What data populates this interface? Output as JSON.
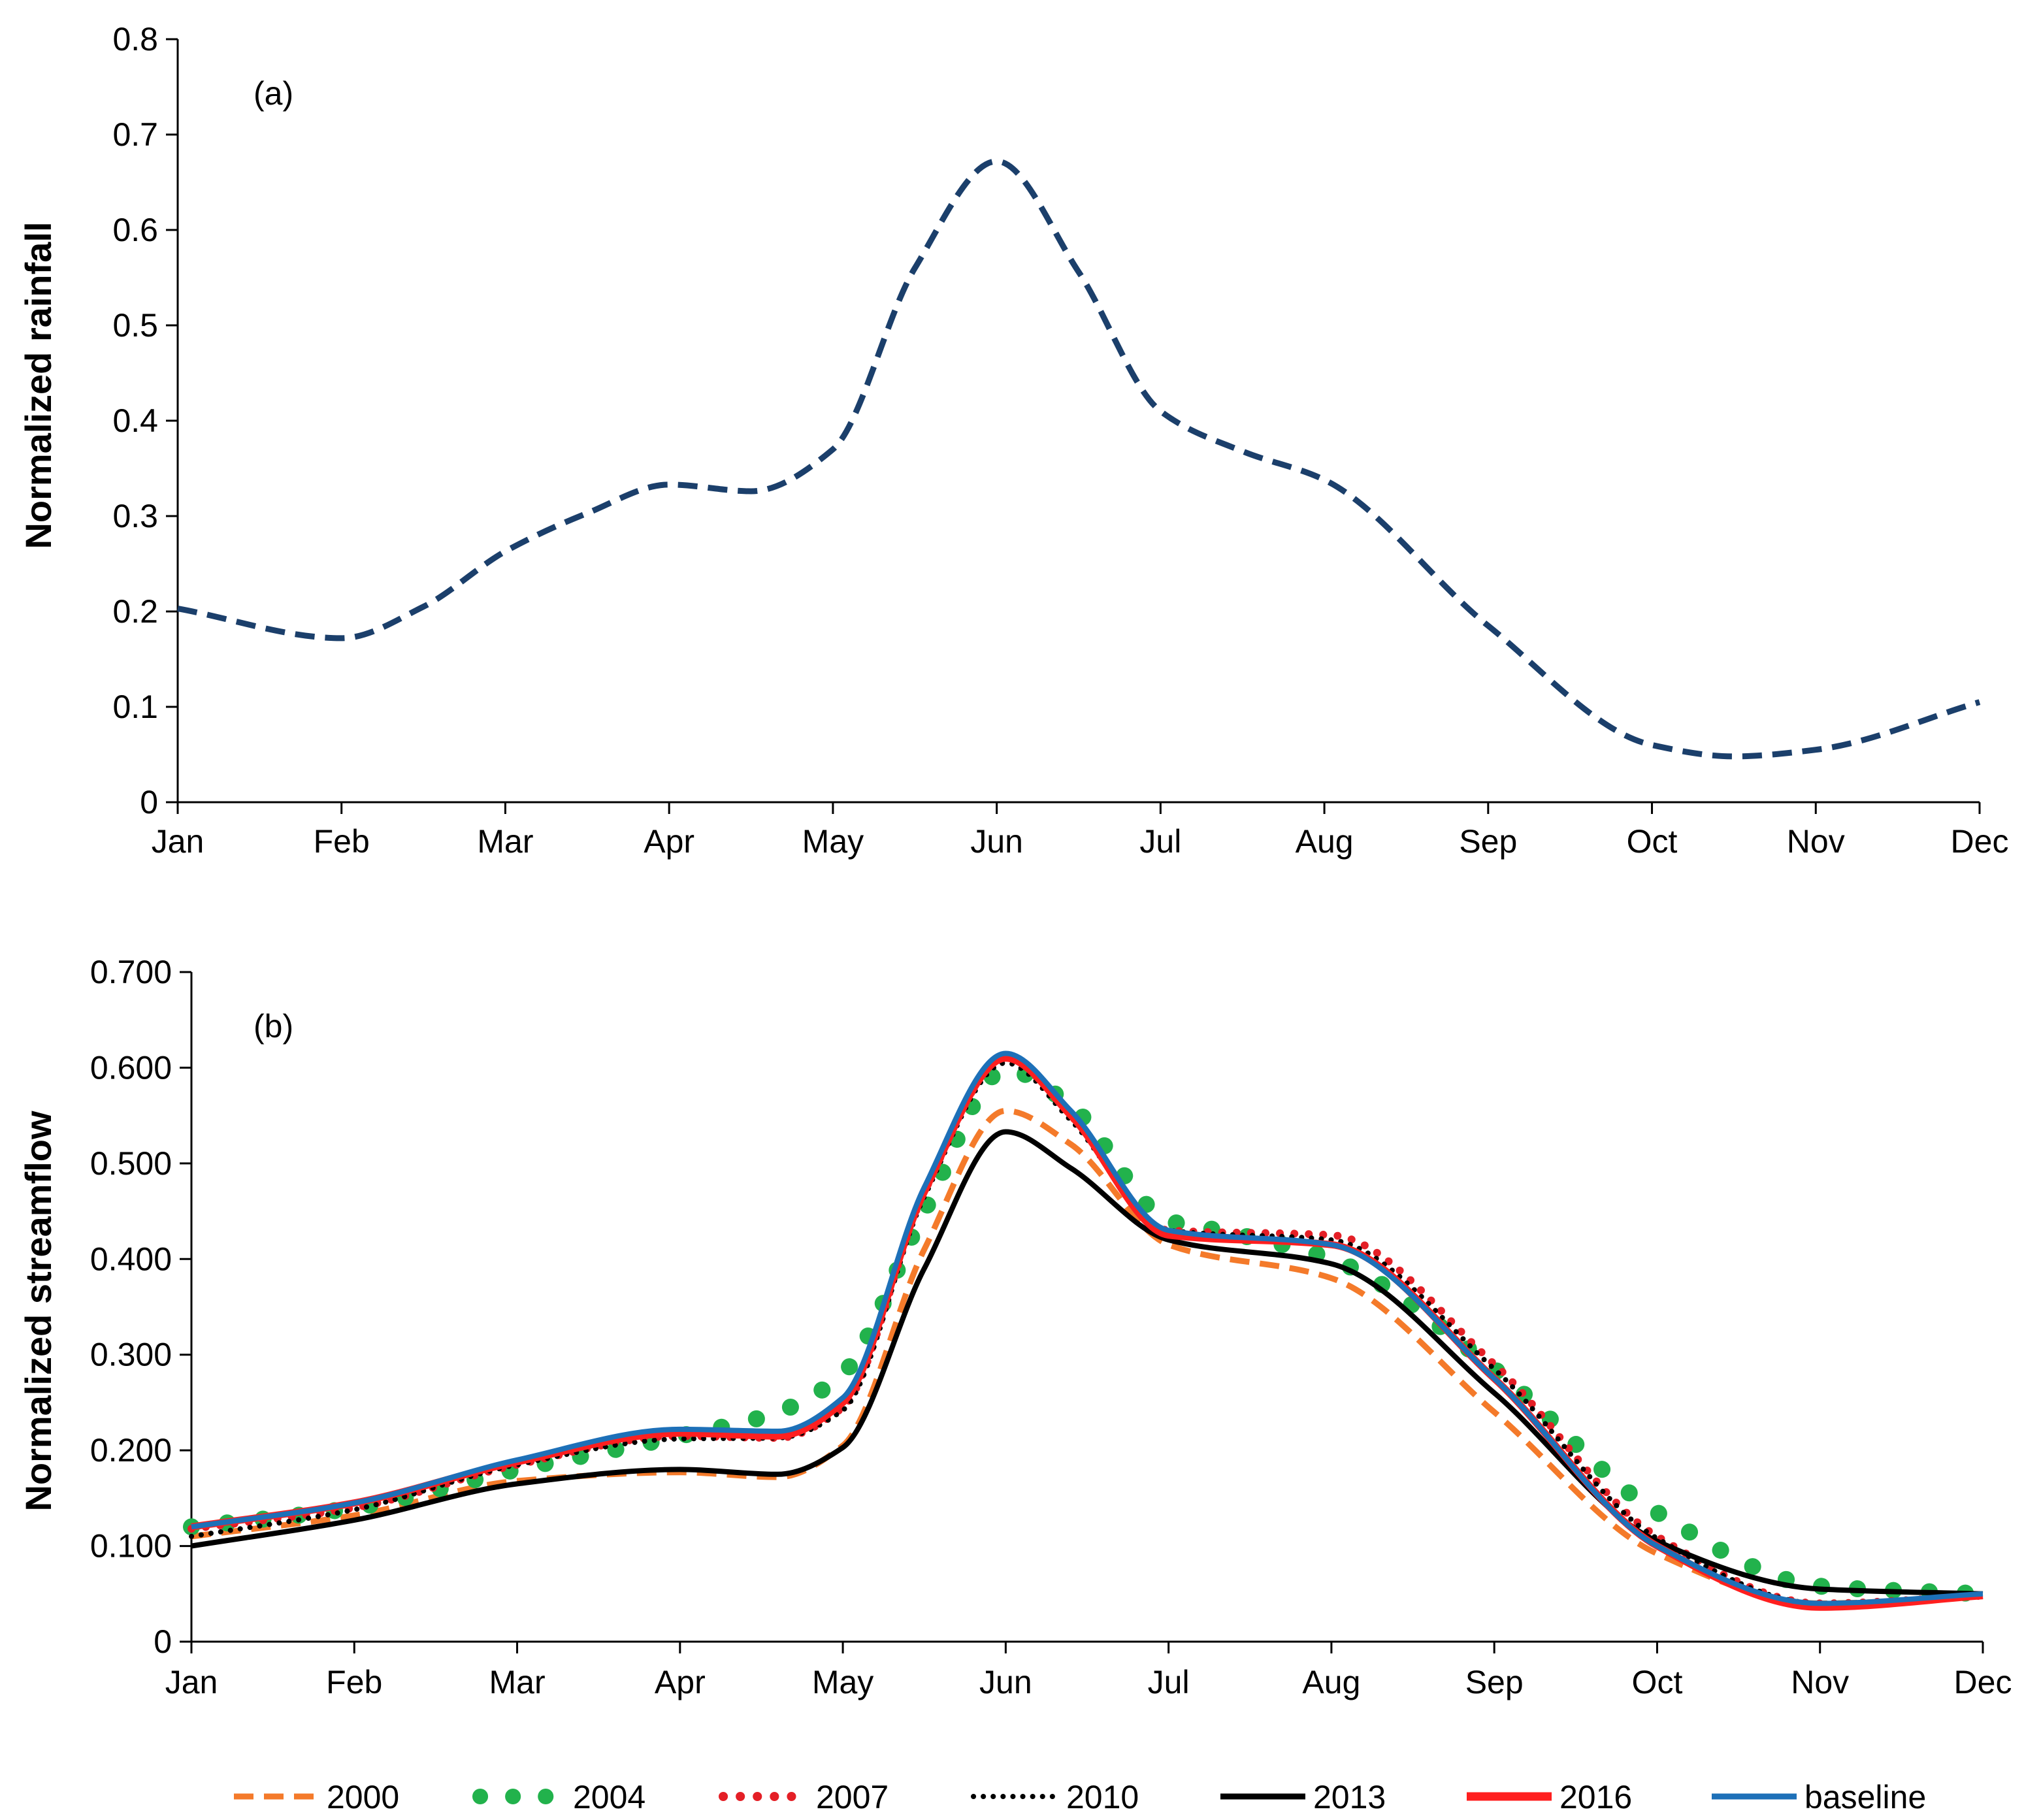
{
  "chart_data": [
    {
      "panel": "(a)",
      "type": "line",
      "title": "",
      "xlabel": "",
      "ylabel": "Normalized rainfall",
      "categories": [
        "Jan",
        "Feb",
        "Mar",
        "Apr",
        "May",
        "Jun",
        "Jul",
        "Aug",
        "Sep",
        "Oct",
        "Nov",
        "Dec"
      ],
      "ylim": [
        0,
        0.8
      ],
      "yticks": [
        "0",
        "0.1",
        "0.2",
        "0.3",
        "0.4",
        "0.5",
        "0.6",
        "0.7",
        "0.8"
      ],
      "series": [
        {
          "name": "rainfall",
          "color": "#1b3f6b",
          "style": "dashed",
          "x": [
            0,
            1,
            1.5,
            2,
            2.5,
            3,
            3.5,
            4,
            4.5,
            5,
            5.5,
            6,
            6.5,
            7,
            8,
            9,
            9.5,
            10,
            11
          ],
          "values": [
            0.203,
            0.172,
            0.205,
            0.263,
            0.303,
            0.333,
            0.326,
            0.37,
            0.56,
            0.672,
            0.556,
            0.41,
            0.368,
            0.338,
            0.185,
            0.06,
            0.048,
            0.055,
            0.105
          ]
        }
      ]
    },
    {
      "panel": "(b)",
      "type": "line",
      "title": "",
      "xlabel": "",
      "ylabel": "Normalized streamflow",
      "categories": [
        "Jan",
        "Feb",
        "Mar",
        "Apr",
        "May",
        "Jun",
        "Jul",
        "Aug",
        "Sep",
        "Oct",
        "Nov",
        "Dec"
      ],
      "ylim": [
        0,
        0.7
      ],
      "yticks": [
        "0",
        "0.100",
        "0.200",
        "0.300",
        "0.400",
        "0.500",
        "0.600",
        "0.700"
      ],
      "series": [
        {
          "name": "2000",
          "color": "#f47a2a",
          "style": "dashed",
          "x": [
            0,
            1,
            2,
            3,
            3.6,
            4,
            4.5,
            5,
            5.4,
            6,
            7,
            8,
            9,
            10,
            11
          ],
          "values": [
            0.11,
            0.132,
            0.168,
            0.177,
            0.172,
            0.205,
            0.41,
            0.555,
            0.52,
            0.415,
            0.38,
            0.24,
            0.092,
            0.04,
            0.048
          ]
        },
        {
          "name": "2004",
          "color": "#22b24c",
          "style": "dots",
          "x": [
            0,
            1,
            2,
            3,
            3.6,
            4,
            4.5,
            5,
            5.4,
            6,
            6.3,
            7,
            8,
            9,
            10,
            11
          ],
          "values": [
            0.12,
            0.14,
            0.18,
            0.215,
            0.24,
            0.28,
            0.45,
            0.598,
            0.56,
            0.44,
            0.43,
            0.4,
            0.285,
            0.135,
            0.058,
            0.05
          ]
        },
        {
          "name": "2007",
          "color": "#e41f26",
          "style": "dots",
          "x": [
            0,
            1,
            2,
            3,
            3.6,
            4,
            4.5,
            5,
            5.4,
            6,
            7,
            8,
            9,
            10,
            11
          ],
          "values": [
            0.118,
            0.14,
            0.185,
            0.215,
            0.213,
            0.245,
            0.47,
            0.61,
            0.55,
            0.43,
            0.425,
            0.29,
            0.11,
            0.04,
            0.048
          ]
        },
        {
          "name": "2010",
          "color": "#000000",
          "style": "dots",
          "x": [
            0,
            1,
            2,
            3,
            3.6,
            4,
            4.5,
            5,
            5.4,
            6,
            7,
            8,
            9,
            10,
            11
          ],
          "values": [
            0.11,
            0.138,
            0.185,
            0.212,
            0.213,
            0.242,
            0.465,
            0.605,
            0.545,
            0.43,
            0.42,
            0.285,
            0.108,
            0.04,
            0.048
          ]
        },
        {
          "name": "2013",
          "color": "#000000",
          "style": "solid",
          "x": [
            0,
            1,
            2,
            3,
            3.6,
            4,
            4.5,
            5,
            5.4,
            6,
            7,
            8,
            9,
            10,
            11
          ],
          "values": [
            0.1,
            0.127,
            0.165,
            0.18,
            0.175,
            0.203,
            0.39,
            0.533,
            0.495,
            0.42,
            0.395,
            0.26,
            0.105,
            0.055,
            0.05
          ]
        },
        {
          "name": "2016",
          "color": "#ff1f1f",
          "style": "solid-thick",
          "x": [
            0,
            1,
            2,
            3,
            3.6,
            4,
            4.5,
            5,
            5.4,
            6,
            7,
            8,
            9,
            10,
            11
          ],
          "values": [
            0.12,
            0.145,
            0.188,
            0.218,
            0.215,
            0.25,
            0.47,
            0.61,
            0.55,
            0.425,
            0.415,
            0.275,
            0.1,
            0.036,
            0.048
          ]
        },
        {
          "name": "baseline",
          "color": "#1d70b8",
          "style": "solid",
          "x": [
            0,
            1,
            2,
            3,
            3.6,
            4,
            4.5,
            5,
            5.4,
            6,
            7,
            8,
            9,
            10,
            11
          ],
          "values": [
            0.12,
            0.145,
            0.19,
            0.222,
            0.22,
            0.255,
            0.475,
            0.615,
            0.555,
            0.43,
            0.415,
            0.275,
            0.1,
            0.04,
            0.05
          ]
        }
      ]
    }
  ],
  "legend": {
    "placement": "bottom-center",
    "entries": [
      "2000",
      "2004",
      "2007",
      "2010",
      "2013",
      "2016",
      "baseline"
    ]
  },
  "panels": {
    "a": {
      "tag": "(a)"
    },
    "b": {
      "tag": "(b)"
    }
  }
}
